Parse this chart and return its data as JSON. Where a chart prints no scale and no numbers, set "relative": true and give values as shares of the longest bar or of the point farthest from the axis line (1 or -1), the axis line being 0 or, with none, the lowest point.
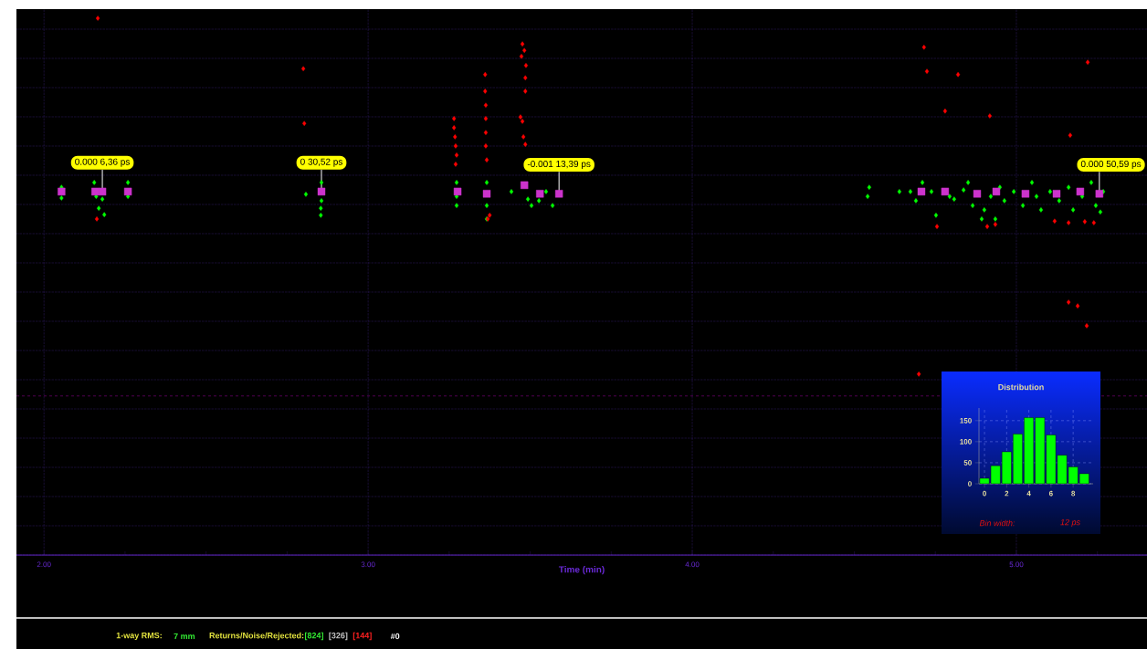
{
  "chart_data": [
    {
      "type": "scatter",
      "relative": true,
      "xlabel": "Time (min)",
      "xlim": [
        1.915,
        5.403
      ],
      "xticks": [
        {
          "value": 2,
          "label": "2.00"
        },
        {
          "value": 2.25,
          "label": null
        },
        {
          "value": 2.5,
          "label": null
        },
        {
          "value": 2.75,
          "label": null
        },
        {
          "value": 3,
          "label": "3.00"
        },
        {
          "value": 3.25,
          "label": null
        },
        {
          "value": 3.5,
          "label": null
        },
        {
          "value": 3.75,
          "label": null
        },
        {
          "value": 4,
          "label": "4.00"
        },
        {
          "value": 4.25,
          "label": null
        },
        {
          "value": 4.5,
          "label": null
        },
        {
          "value": 4.75,
          "label": null
        },
        {
          "value": 5,
          "label": "5.00"
        },
        {
          "value": 5.25,
          "label": null
        }
      ],
      "grid": true,
      "ref_lines": [
        {
          "axis": "y",
          "value": 0.296,
          "color": "#800080",
          "line_style": "dashed"
        }
      ],
      "series": [
        {
          "color": "#00ff00",
          "marker": "diamond",
          "x": [
            2.054,
            2.054,
            2.155,
            2.161,
            2.169,
            2.18,
            2.186,
            2.259,
            2.259,
            2.808,
            2.856,
            2.856,
            2.854,
            2.854,
            3.273,
            3.273,
            3.273,
            3.366,
            3.366,
            3.366,
            3.485,
            3.493,
            3.504,
            3.527,
            3.549,
            3.569,
            3.442,
            4.541,
            4.546,
            4.639,
            4.673,
            4.69,
            4.738,
            4.752,
            4.794,
            4.808,
            4.837,
            4.851,
            4.865,
            4.893,
            4.901,
            4.921,
            4.935,
            4.949,
            4.963,
            4.992,
            5.02,
            5.048,
            5.062,
            5.076,
            5.104,
            5.132,
            5.161,
            5.175,
            5.203,
            5.231,
            5.245,
            5.259,
            5.268,
            4.71
          ],
          "values": [
            0.685,
            0.665,
            0.694,
            0.668,
            0.646,
            0.663,
            0.634,
            0.694,
            0.668,
            0.672,
            0.694,
            0.66,
            0.646,
            0.633,
            0.694,
            0.668,
            0.651,
            0.694,
            0.651,
            0.626,
            null,
            0.663,
            0.651,
            0.66,
            0.677,
            0.651,
            0.677,
            0.668,
            0.685,
            0.677,
            0.677,
            0.66,
            0.677,
            0.633,
            0.668,
            0.663,
            0.68,
            0.694,
            0.651,
            0.626,
            0.643,
            0.668,
            0.626,
            0.685,
            0.66,
            0.677,
            0.651,
            0.694,
            0.668,
            0.643,
            0.677,
            0.66,
            0.685,
            0.643,
            0.668,
            0.694,
            0.651,
            0.639,
            0.677,
            0.694
          ]
        },
        {
          "color": "#ff0000",
          "marker": "diamond",
          "x": [
            2.166,
            2.8,
            2.803,
            2.163,
            3.265,
            3.265,
            3.268,
            3.27,
            3.273,
            3.27,
            3.361,
            3.361,
            3.363,
            3.363,
            3.363,
            3.363,
            3.366,
            3.369,
            3.375,
            3.476,
            3.482,
            3.473,
            3.487,
            3.485,
            3.485,
            3.47,
            3.476,
            3.479,
            3.485,
            4.715,
            4.724,
            4.82,
            4.78,
            4.918,
            5.22,
            5.166,
            4.699,
            4.755,
            4.91,
            4.935,
            5.118,
            5.161,
            5.211,
            5.239,
            5.161,
            5.189,
            5.217
          ],
          "values": [
            1.0,
            0.906,
            0.804,
            0.626,
            0.813,
            0.796,
            0.779,
            0.762,
            0.745,
            0.728,
            0.895,
            0.864,
            0.838,
            0.813,
            0.787,
            0.762,
            0.736,
            0.626,
            0.633,
            0.952,
            0.94,
            0.929,
            0.912,
            0.889,
            0.864,
            0.816,
            0.808,
            0.779,
            0.765,
            0.946,
            0.901,
            0.895,
            0.827,
            0.818,
            0.918,
            0.782,
            0.337,
            0.612,
            0.612,
            0.616,
            0.622,
            0.619,
            0.621,
            0.619,
            0.471,
            0.464,
            0.427
          ]
        },
        {
          "color": "#cc33cc",
          "marker": "square",
          "x": [
            2.054,
            2.158,
            2.18,
            2.259,
            2.856,
            3.276,
            3.366,
            3.482,
            3.53,
            3.589,
            4.707,
            4.78,
            4.879,
            4.938,
            5.028,
            5.124,
            5.197,
            5.256
          ],
          "values": [
            0.677,
            0.677,
            0.677,
            0.677,
            0.677,
            0.677,
            0.673,
            0.689,
            0.673,
            0.673,
            0.677,
            0.677,
            0.673,
            0.677,
            0.673,
            0.673,
            0.677,
            0.673
          ]
        }
      ],
      "annotations": [
        {
          "text": "0.000 6,36 ps",
          "x": 2.18,
          "y": 0.677
        },
        {
          "text": "0 30,52 ps",
          "x": 2.856,
          "y": 0.677
        },
        {
          "text": "-0.001 13,39 ps",
          "x": 3.589,
          "y": 0.673
        },
        {
          "text": "0.000 50,59 ps",
          "x": 5.256,
          "y": 0.673
        },
        "1-way RMS:",
        "7 mm",
        "Returns/Noise/Rejected:",
        "[824]",
        "[326]",
        "[144]",
        "#0"
      ]
    },
    {
      "type": "bar",
      "title": "Distribution",
      "x": [
        0,
        1,
        2,
        3,
        4,
        5,
        6,
        7,
        8,
        9
      ],
      "values": [
        13,
        43,
        76,
        118,
        157,
        157,
        116,
        68,
        40,
        24
      ],
      "color": "#00ff00",
      "xlim": [
        -0.5,
        9.8
      ],
      "xticks": [
        0,
        2,
        4,
        6,
        8
      ],
      "ylim": [
        0,
        180
      ],
      "yticks": [
        0,
        50,
        100,
        150
      ],
      "grid": true,
      "annotations": [
        "Bin width:",
        "12 ps"
      ]
    }
  ]
}
